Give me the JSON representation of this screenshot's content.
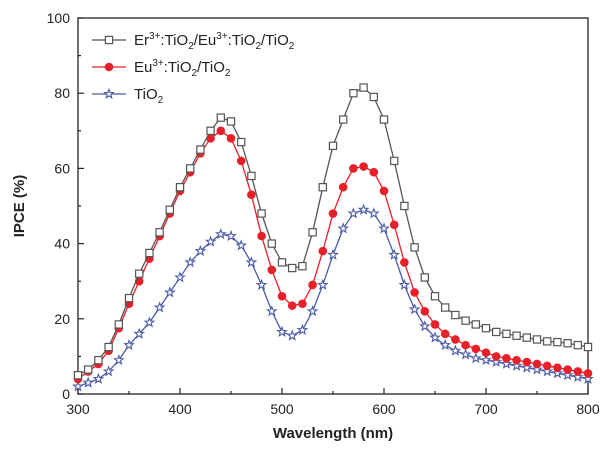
{
  "chart_data": {
    "type": "line",
    "xlabel": "Wavelength (nm)",
    "ylabel": "IPCE (%)",
    "xlim": [
      300,
      800
    ],
    "ylim": [
      0,
      100
    ],
    "xticks": [
      300,
      400,
      500,
      600,
      700,
      800
    ],
    "yticks": [
      0,
      20,
      40,
      60,
      80,
      100
    ],
    "grid": false,
    "legend_position": "top-left",
    "x": [
      300,
      310,
      320,
      330,
      340,
      350,
      360,
      370,
      380,
      390,
      400,
      410,
      420,
      430,
      440,
      450,
      460,
      470,
      480,
      490,
      500,
      510,
      520,
      530,
      540,
      550,
      560,
      570,
      580,
      590,
      600,
      610,
      620,
      630,
      640,
      650,
      660,
      670,
      680,
      690,
      700,
      710,
      720,
      730,
      740,
      750,
      760,
      770,
      780,
      790,
      800
    ],
    "series": [
      {
        "name": "Er3+:TiO2/Eu3+:TiO2/TiO2",
        "label_parts": [
          {
            "t": "Er",
            "s": "n"
          },
          {
            "t": "3+",
            "s": "sup"
          },
          {
            "t": ":TiO",
            "s": "n"
          },
          {
            "t": "2",
            "s": "sub"
          },
          {
            "t": "/Eu",
            "s": "n"
          },
          {
            "t": "3+",
            "s": "sup"
          },
          {
            "t": ":TiO",
            "s": "n"
          },
          {
            "t": "2",
            "s": "sub"
          },
          {
            "t": "/TiO",
            "s": "n"
          },
          {
            "t": "2",
            "s": "sub"
          }
        ],
        "color": "#555555",
        "marker": "square",
        "values": [
          5,
          6.5,
          9,
          12.5,
          18.5,
          25.5,
          32,
          37.5,
          43,
          49,
          55,
          60,
          65,
          70,
          73.5,
          72.5,
          67,
          58,
          48,
          40,
          35,
          33.5,
          34,
          43,
          55,
          66,
          73,
          80,
          81.5,
          79,
          73,
          62,
          50,
          39,
          31,
          26,
          23,
          21,
          19.5,
          18.5,
          17.5,
          16.5,
          16,
          15.5,
          15,
          14.5,
          14,
          13.8,
          13.5,
          13,
          12.5
        ]
      },
      {
        "name": "Eu3+:TiO2/TiO2",
        "label_parts": [
          {
            "t": "Eu",
            "s": "n"
          },
          {
            "t": "3+",
            "s": "sup"
          },
          {
            "t": ":TiO",
            "s": "n"
          },
          {
            "t": "2",
            "s": "sub"
          },
          {
            "t": "/TiO",
            "s": "n"
          },
          {
            "t": "2",
            "s": "sub"
          }
        ],
        "color": "#e8202a",
        "marker": "circle",
        "values": [
          4,
          6,
          8,
          11.5,
          17.5,
          24,
          30,
          36,
          42,
          48,
          54,
          59,
          64,
          68,
          70,
          68,
          62,
          53,
          42,
          33,
          26,
          23.5,
          24,
          29,
          38,
          48,
          55,
          60,
          60.5,
          59,
          54,
          45,
          35,
          27,
          22,
          18.5,
          16,
          14.5,
          13,
          12,
          11,
          10,
          9.5,
          9,
          8.5,
          8,
          7.5,
          7,
          6.5,
          6,
          5.5
        ]
      },
      {
        "name": "TiO2",
        "label_parts": [
          {
            "t": "TiO",
            "s": "n"
          },
          {
            "t": "2",
            "s": "sub"
          }
        ],
        "color": "#4a5aa8",
        "marker": "star",
        "values": [
          2,
          3,
          4,
          6,
          9,
          13,
          16,
          19,
          23,
          27,
          31,
          35,
          38,
          40.5,
          42.5,
          42,
          39.5,
          35,
          29,
          22,
          16.5,
          15.5,
          17,
          22,
          29,
          37,
          44,
          48,
          49,
          48,
          44,
          37,
          29,
          22.5,
          18,
          15,
          13,
          11.5,
          10.5,
          9.5,
          9,
          8.5,
          8,
          7.5,
          7,
          6.5,
          6,
          5.5,
          5,
          4.5,
          4
        ]
      }
    ]
  }
}
